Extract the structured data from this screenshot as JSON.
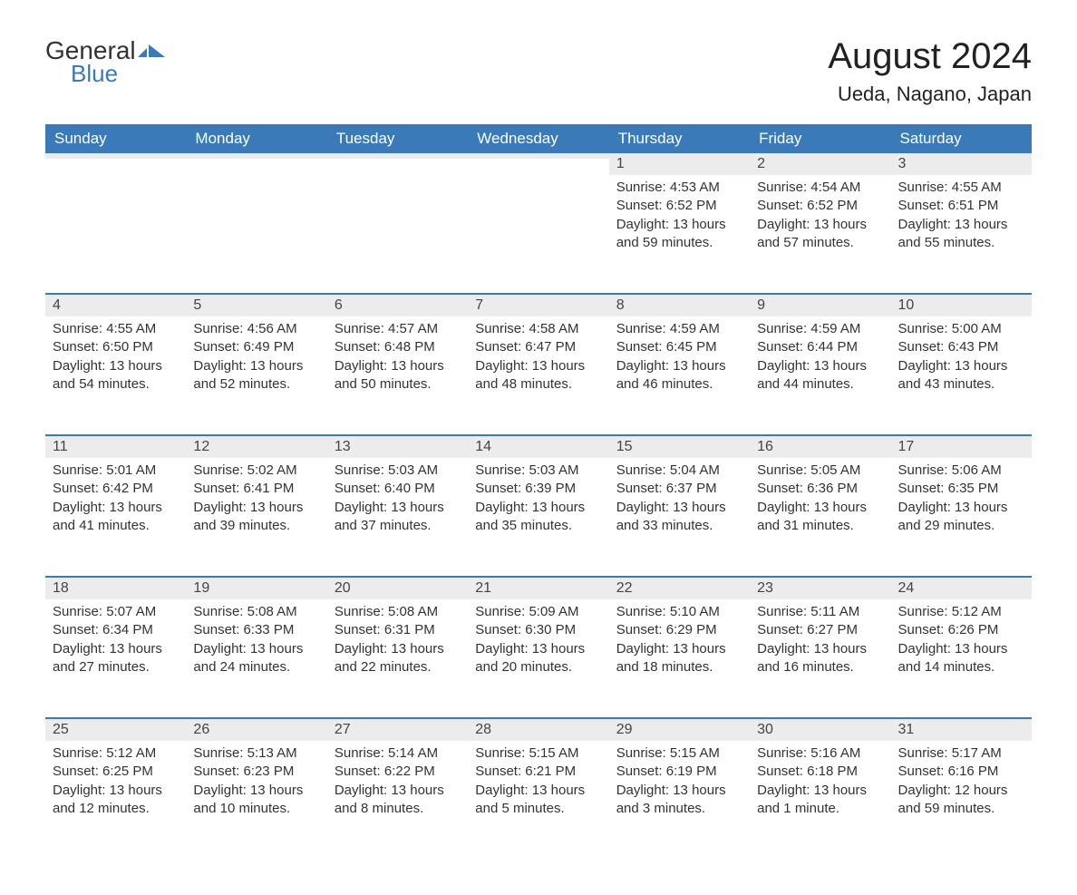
{
  "logo": {
    "text1": "General",
    "text2": "Blue"
  },
  "title": "August 2024",
  "location": "Ueda, Nagano, Japan",
  "colors": {
    "header_bg": "#3a7ab8",
    "header_text": "#ffffff",
    "daynum_bg": "#ececec",
    "row_border": "#3a7ab8",
    "body_text": "#333333",
    "logo_blue": "#3a7ab8",
    "page_bg": "#ffffff"
  },
  "day_headers": [
    "Sunday",
    "Monday",
    "Tuesday",
    "Wednesday",
    "Thursday",
    "Friday",
    "Saturday"
  ],
  "weeks": [
    [
      null,
      null,
      null,
      null,
      {
        "n": "1",
        "sunrise": "Sunrise: 4:53 AM",
        "sunset": "Sunset: 6:52 PM",
        "daylight": "Daylight: 13 hours and 59 minutes."
      },
      {
        "n": "2",
        "sunrise": "Sunrise: 4:54 AM",
        "sunset": "Sunset: 6:52 PM",
        "daylight": "Daylight: 13 hours and 57 minutes."
      },
      {
        "n": "3",
        "sunrise": "Sunrise: 4:55 AM",
        "sunset": "Sunset: 6:51 PM",
        "daylight": "Daylight: 13 hours and 55 minutes."
      }
    ],
    [
      {
        "n": "4",
        "sunrise": "Sunrise: 4:55 AM",
        "sunset": "Sunset: 6:50 PM",
        "daylight": "Daylight: 13 hours and 54 minutes."
      },
      {
        "n": "5",
        "sunrise": "Sunrise: 4:56 AM",
        "sunset": "Sunset: 6:49 PM",
        "daylight": "Daylight: 13 hours and 52 minutes."
      },
      {
        "n": "6",
        "sunrise": "Sunrise: 4:57 AM",
        "sunset": "Sunset: 6:48 PM",
        "daylight": "Daylight: 13 hours and 50 minutes."
      },
      {
        "n": "7",
        "sunrise": "Sunrise: 4:58 AM",
        "sunset": "Sunset: 6:47 PM",
        "daylight": "Daylight: 13 hours and 48 minutes."
      },
      {
        "n": "8",
        "sunrise": "Sunrise: 4:59 AM",
        "sunset": "Sunset: 6:45 PM",
        "daylight": "Daylight: 13 hours and 46 minutes."
      },
      {
        "n": "9",
        "sunrise": "Sunrise: 4:59 AM",
        "sunset": "Sunset: 6:44 PM",
        "daylight": "Daylight: 13 hours and 44 minutes."
      },
      {
        "n": "10",
        "sunrise": "Sunrise: 5:00 AM",
        "sunset": "Sunset: 6:43 PM",
        "daylight": "Daylight: 13 hours and 43 minutes."
      }
    ],
    [
      {
        "n": "11",
        "sunrise": "Sunrise: 5:01 AM",
        "sunset": "Sunset: 6:42 PM",
        "daylight": "Daylight: 13 hours and 41 minutes."
      },
      {
        "n": "12",
        "sunrise": "Sunrise: 5:02 AM",
        "sunset": "Sunset: 6:41 PM",
        "daylight": "Daylight: 13 hours and 39 minutes."
      },
      {
        "n": "13",
        "sunrise": "Sunrise: 5:03 AM",
        "sunset": "Sunset: 6:40 PM",
        "daylight": "Daylight: 13 hours and 37 minutes."
      },
      {
        "n": "14",
        "sunrise": "Sunrise: 5:03 AM",
        "sunset": "Sunset: 6:39 PM",
        "daylight": "Daylight: 13 hours and 35 minutes."
      },
      {
        "n": "15",
        "sunrise": "Sunrise: 5:04 AM",
        "sunset": "Sunset: 6:37 PM",
        "daylight": "Daylight: 13 hours and 33 minutes."
      },
      {
        "n": "16",
        "sunrise": "Sunrise: 5:05 AM",
        "sunset": "Sunset: 6:36 PM",
        "daylight": "Daylight: 13 hours and 31 minutes."
      },
      {
        "n": "17",
        "sunrise": "Sunrise: 5:06 AM",
        "sunset": "Sunset: 6:35 PM",
        "daylight": "Daylight: 13 hours and 29 minutes."
      }
    ],
    [
      {
        "n": "18",
        "sunrise": "Sunrise: 5:07 AM",
        "sunset": "Sunset: 6:34 PM",
        "daylight": "Daylight: 13 hours and 27 minutes."
      },
      {
        "n": "19",
        "sunrise": "Sunrise: 5:08 AM",
        "sunset": "Sunset: 6:33 PM",
        "daylight": "Daylight: 13 hours and 24 minutes."
      },
      {
        "n": "20",
        "sunrise": "Sunrise: 5:08 AM",
        "sunset": "Sunset: 6:31 PM",
        "daylight": "Daylight: 13 hours and 22 minutes."
      },
      {
        "n": "21",
        "sunrise": "Sunrise: 5:09 AM",
        "sunset": "Sunset: 6:30 PM",
        "daylight": "Daylight: 13 hours and 20 minutes."
      },
      {
        "n": "22",
        "sunrise": "Sunrise: 5:10 AM",
        "sunset": "Sunset: 6:29 PM",
        "daylight": "Daylight: 13 hours and 18 minutes."
      },
      {
        "n": "23",
        "sunrise": "Sunrise: 5:11 AM",
        "sunset": "Sunset: 6:27 PM",
        "daylight": "Daylight: 13 hours and 16 minutes."
      },
      {
        "n": "24",
        "sunrise": "Sunrise: 5:12 AM",
        "sunset": "Sunset: 6:26 PM",
        "daylight": "Daylight: 13 hours and 14 minutes."
      }
    ],
    [
      {
        "n": "25",
        "sunrise": "Sunrise: 5:12 AM",
        "sunset": "Sunset: 6:25 PM",
        "daylight": "Daylight: 13 hours and 12 minutes."
      },
      {
        "n": "26",
        "sunrise": "Sunrise: 5:13 AM",
        "sunset": "Sunset: 6:23 PM",
        "daylight": "Daylight: 13 hours and 10 minutes."
      },
      {
        "n": "27",
        "sunrise": "Sunrise: 5:14 AM",
        "sunset": "Sunset: 6:22 PM",
        "daylight": "Daylight: 13 hours and 8 minutes."
      },
      {
        "n": "28",
        "sunrise": "Sunrise: 5:15 AM",
        "sunset": "Sunset: 6:21 PM",
        "daylight": "Daylight: 13 hours and 5 minutes."
      },
      {
        "n": "29",
        "sunrise": "Sunrise: 5:15 AM",
        "sunset": "Sunset: 6:19 PM",
        "daylight": "Daylight: 13 hours and 3 minutes."
      },
      {
        "n": "30",
        "sunrise": "Sunrise: 5:16 AM",
        "sunset": "Sunset: 6:18 PM",
        "daylight": "Daylight: 13 hours and 1 minute."
      },
      {
        "n": "31",
        "sunrise": "Sunrise: 5:17 AM",
        "sunset": "Sunset: 6:16 PM",
        "daylight": "Daylight: 12 hours and 59 minutes."
      }
    ]
  ]
}
